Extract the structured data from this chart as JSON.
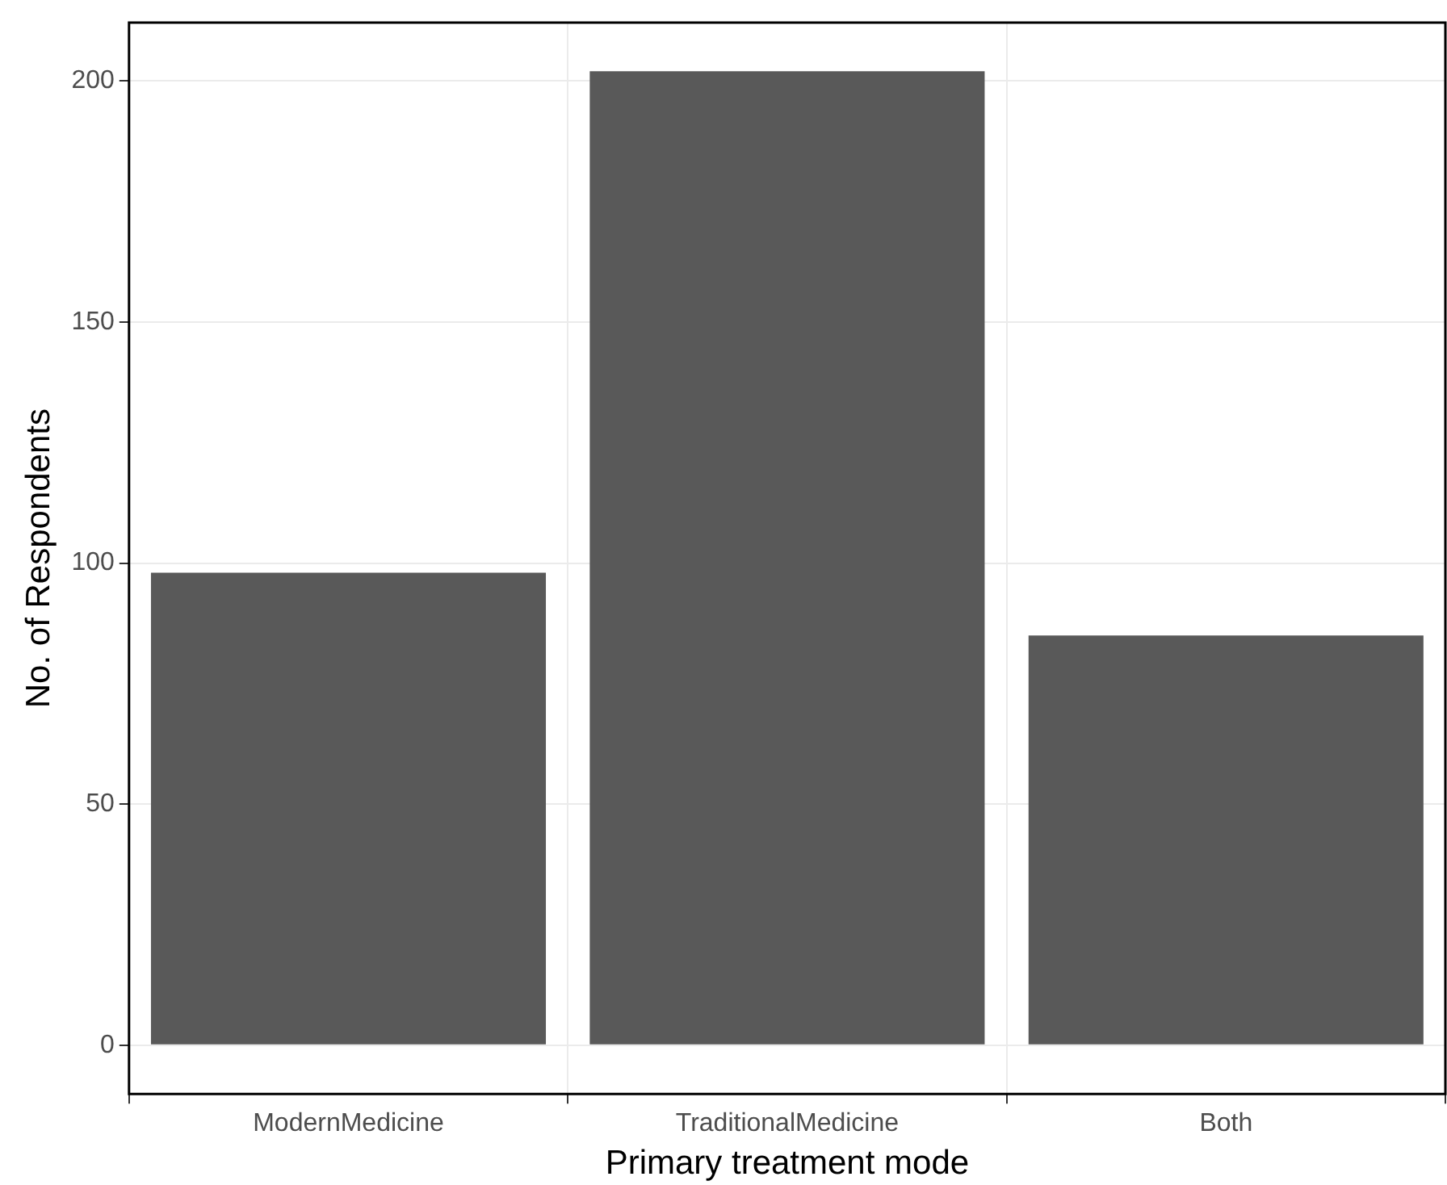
{
  "chart_data": {
    "type": "bar",
    "xlabel": "Primary treatment mode",
    "ylabel": "No. of Respondents",
    "categories": [
      "ModernMedicine",
      "TraditionalMedicine",
      "Both"
    ],
    "values": [
      98,
      202,
      85
    ],
    "color": "#595959",
    "ylim": [
      -10.1,
      212.1
    ],
    "yticks": [
      0,
      50,
      100,
      150,
      200
    ],
    "grid": true
  }
}
